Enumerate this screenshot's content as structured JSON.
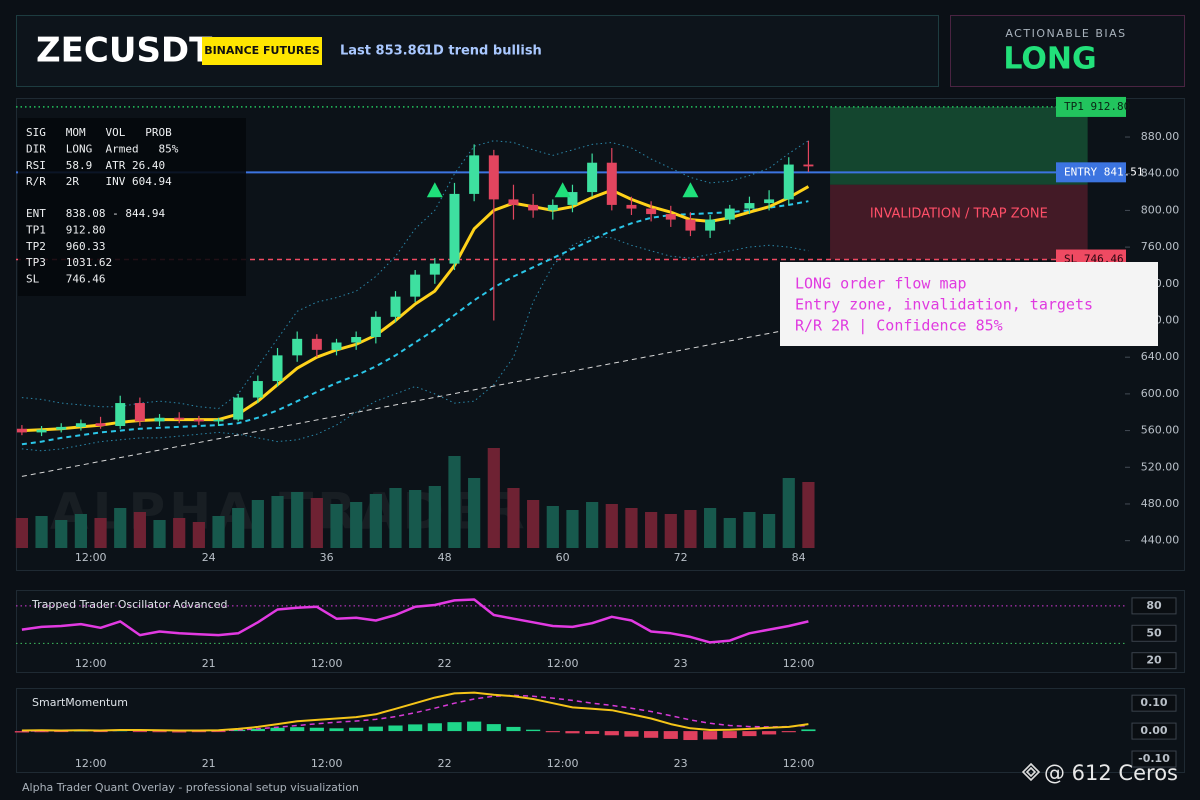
{
  "header": {
    "symbol": "ZECUSDT",
    "exchange": "BINANCE FUTURES",
    "last": "Last 853.86",
    "trend": "1D trend bullish"
  },
  "bias": {
    "label": "ACTIONABLE BIAS",
    "value": "LONG"
  },
  "info_panel": {
    "stats": [
      "SIG   MOM   VOL   PROB",
      "DIR   LONG  Armed   85%",
      "RSI   58.9  ATR 26.40",
      "R/R   2R    INV 604.94"
    ],
    "levels": [
      "ENT   838.08 - 844.94",
      "TP1   912.80",
      "TP2   960.33",
      "TP3   1031.62",
      "SL    746.46"
    ]
  },
  "annotation": {
    "lines": [
      "LONG order flow map",
      "Entry zone, invalidation, targets",
      "R/R 2R | Confidence 85%"
    ]
  },
  "footer": "Alpha Trader Quant Overlay - professional setup visualization",
  "credit": "@ 612 Ceros",
  "chart_data": [
    {
      "type": "candlestick",
      "watermark": "ALPHA TRADER",
      "x": [
        5,
        7,
        9,
        11,
        13,
        15,
        17,
        19,
        21,
        23,
        25,
        27,
        29,
        31,
        33,
        35,
        37,
        39,
        41,
        43,
        45,
        47,
        49,
        51,
        53,
        55,
        57,
        59,
        61,
        63,
        65,
        67,
        69,
        71,
        73,
        75,
        77,
        79,
        81,
        83,
        85
      ],
      "open": [
        562,
        558,
        561,
        564,
        568,
        565,
        590,
        570,
        574,
        572,
        570,
        572,
        596,
        614,
        642,
        660,
        648,
        656,
        662,
        684,
        706,
        730,
        742,
        818,
        860,
        812,
        806,
        800,
        806,
        820,
        852,
        806,
        802,
        796,
        790,
        778,
        790,
        802,
        808,
        812,
        850
      ],
      "high": [
        566,
        565,
        568,
        572,
        575,
        598,
        596,
        578,
        580,
        576,
        574,
        600,
        620,
        650,
        668,
        665,
        660,
        668,
        690,
        712,
        735,
        748,
        830,
        872,
        866,
        828,
        818,
        812,
        828,
        862,
        868,
        815,
        810,
        805,
        798,
        795,
        806,
        815,
        822,
        858,
        876
      ],
      "low": [
        555,
        554,
        558,
        560,
        562,
        562,
        565,
        565,
        568,
        566,
        565,
        570,
        590,
        608,
        635,
        640,
        642,
        648,
        655,
        678,
        700,
        720,
        735,
        810,
        680,
        790,
        792,
        790,
        798,
        815,
        800,
        795,
        788,
        782,
        772,
        770,
        785,
        796,
        800,
        806,
        842
      ],
      "close": [
        558,
        561,
        564,
        568,
        565,
        590,
        570,
        574,
        572,
        570,
        572,
        596,
        614,
        642,
        660,
        648,
        656,
        662,
        684,
        706,
        730,
        742,
        818,
        860,
        812,
        806,
        800,
        806,
        820,
        852,
        806,
        802,
        796,
        790,
        778,
        790,
        802,
        808,
        812,
        850,
        848
      ],
      "volume": [
        30,
        32,
        28,
        34,
        30,
        40,
        36,
        28,
        30,
        26,
        32,
        40,
        48,
        52,
        56,
        50,
        44,
        46,
        54,
        60,
        58,
        62,
        92,
        70,
        100,
        60,
        48,
        42,
        38,
        46,
        44,
        40,
        36,
        34,
        38,
        40,
        30,
        36,
        34,
        70,
        66
      ],
      "volume_ylim": [
        0,
        100
      ],
      "up_color": "#3ee0a0",
      "down_color": "#e2455f",
      "volume_up_color": "#17594d",
      "volume_down_color": "#6e2233",
      "series": [
        {
          "color": "#2a86a8",
          "style": "dotted",
          "width": 1,
          "values": [
            596,
            594,
            590,
            588,
            586,
            586,
            590,
            592,
            590,
            586,
            584,
            600,
            630,
            660,
            690,
            700,
            705,
            712,
            728,
            750,
            780,
            800,
            840,
            870,
            876,
            874,
            866,
            860,
            866,
            872,
            874,
            868,
            856,
            846,
            836,
            830,
            832,
            838,
            846,
            862,
            876
          ]
        },
        {
          "color": "#2a86a8",
          "style": "dotted",
          "width": 1,
          "values": [
            540,
            538,
            540,
            544,
            548,
            550,
            552,
            552,
            554,
            556,
            558,
            556,
            552,
            548,
            550,
            556,
            566,
            580,
            592,
            600,
            608,
            600,
            590,
            592,
            610,
            640,
            700,
            740,
            762,
            772,
            770,
            762,
            756,
            750,
            748,
            752,
            756,
            760,
            762,
            760,
            756
          ]
        },
        {
          "color": "#d8d8d8",
          "style": "dashed",
          "width": 1,
          "x": [
            5,
            82
          ],
          "values": [
            510,
            668
          ]
        },
        {
          "color": "#2bc6e8",
          "style": "dashed",
          "width": 2,
          "values": [
            545,
            548,
            552,
            555,
            558,
            560,
            562,
            563,
            564,
            565,
            566,
            568,
            574,
            582,
            592,
            602,
            612,
            620,
            630,
            642,
            656,
            670,
            686,
            702,
            716,
            728,
            738,
            748,
            758,
            768,
            778,
            786,
            792,
            795,
            796,
            797,
            798,
            800,
            803,
            806,
            810
          ]
        },
        {
          "color": "#ffd21a",
          "style": "solid",
          "width": 3,
          "values": [
            560,
            561,
            562,
            564,
            566,
            569,
            571,
            572,
            572,
            572,
            572,
            578,
            592,
            610,
            628,
            640,
            648,
            654,
            664,
            680,
            698,
            712,
            740,
            780,
            800,
            808,
            804,
            800,
            804,
            814,
            822,
            812,
            804,
            798,
            790,
            788,
            792,
            798,
            804,
            814,
            826
          ]
        }
      ],
      "signals": {
        "x": [
          47,
          60,
          73
        ],
        "values": [
          822,
          822,
          822
        ],
        "color": "#1fe07a"
      },
      "zones": [
        {
          "x": [
            87.2,
            113.4
          ],
          "y": [
            828,
            912.8
          ],
          "color": "#1c7a45"
        },
        {
          "x": [
            87.2,
            113.4
          ],
          "y": [
            746.46,
            828
          ],
          "color": "#7a2234",
          "label": "INVALIDATION / TRAP ZONE",
          "label_color": "#ff4f68"
        }
      ],
      "levels": [
        {
          "value": 912.8,
          "label": "TP1 912.80",
          "color": "#22c55e",
          "style": "dotted",
          "text_color": "#0a2414"
        },
        {
          "value": 841.51,
          "label": "ENTRY 841.51",
          "color": "#3c74e0",
          "style": "solid",
          "text_color": "#ffffff"
        },
        {
          "value": 746.46,
          "label": "SL 746.46",
          "color": "#ef4a62",
          "style": "dashed",
          "text_color": "#2a0610"
        }
      ],
      "xlim": [
        4.4,
        117.2
      ],
      "xticks": [
        {
          "value": 12,
          "label": "12:00"
        },
        24,
        36,
        48,
        60,
        72,
        84
      ],
      "ylim": [
        432,
        916
      ],
      "yticks": [
        {
          "value": 440,
          "label": "440.00"
        },
        {
          "value": 480,
          "label": "480.00"
        },
        {
          "value": 520,
          "label": "520.00"
        },
        {
          "value": 560,
          "label": "560.00"
        },
        {
          "value": 600,
          "label": "600.00"
        },
        {
          "value": 640,
          "label": "640.00"
        },
        {
          "value": 680,
          "label": "680.00"
        },
        {
          "value": 720,
          "label": "720.00"
        },
        {
          "value": 760,
          "label": "760.00"
        },
        {
          "value": 800,
          "label": "800.00"
        },
        {
          "value": 840,
          "label": "840.00"
        },
        {
          "value": 880,
          "label": "880.00"
        }
      ]
    },
    {
      "type": "line",
      "title": "Trapped Trader Oscillator Advanced",
      "x": [
        5,
        7,
        9,
        11,
        13,
        15,
        17,
        19,
        21,
        23,
        25,
        27,
        29,
        31,
        33,
        35,
        37,
        39,
        41,
        43,
        45,
        47,
        49,
        51,
        53,
        55,
        57,
        59,
        61,
        63,
        65,
        67,
        69,
        71,
        73,
        75,
        77,
        79,
        81,
        83,
        85
      ],
      "series": [
        {
          "color": "#e23ae2",
          "style": "solid",
          "width": 2.5,
          "values": [
            54,
            57,
            58,
            60,
            56,
            63,
            48,
            52,
            50,
            49,
            48,
            50,
            62,
            76,
            78,
            79,
            66,
            67,
            64,
            70,
            79,
            81,
            86,
            87,
            70,
            66,
            62,
            58,
            57,
            61,
            68,
            64,
            52,
            50,
            46,
            40,
            42,
            50,
            54,
            58,
            63
          ]
        }
      ],
      "levels": [
        {
          "value": 80,
          "color": "#d63ad6",
          "style": "dotted"
        },
        {
          "value": 39,
          "color": "#3fbf5f",
          "style": "dotted"
        }
      ],
      "xlim": [
        4.4,
        117.2
      ],
      "xticks": [
        {
          "value": 12,
          "label": "12:00"
        },
        {
          "value": 24,
          "label": "21"
        },
        {
          "value": 36,
          "label": "12:00"
        },
        {
          "value": 48,
          "label": "22"
        },
        {
          "value": 60,
          "label": "12:00"
        },
        {
          "value": 72,
          "label": "23"
        },
        {
          "value": 84,
          "label": "12:00"
        }
      ],
      "ylim": [
        12,
        93
      ],
      "yticks": [
        80,
        50,
        20
      ]
    },
    {
      "type": "combo",
      "title": "SmartMomentum",
      "x": [
        5,
        7,
        9,
        11,
        13,
        15,
        17,
        19,
        21,
        23,
        25,
        27,
        29,
        31,
        33,
        35,
        37,
        39,
        41,
        43,
        45,
        47,
        49,
        51,
        53,
        55,
        57,
        59,
        61,
        63,
        65,
        67,
        69,
        71,
        73,
        75,
        77,
        79,
        81,
        83,
        85
      ],
      "histogram": {
        "up_color": "#1fd68a",
        "down_color": "#e0405e",
        "values": [
          -0.005,
          -0.004,
          -0.003,
          0.002,
          -0.002,
          0.003,
          -0.003,
          -0.004,
          -0.005,
          -0.004,
          -0.003,
          0.004,
          0.008,
          0.012,
          0.014,
          0.012,
          0.01,
          0.012,
          0.016,
          0.02,
          0.024,
          0.028,
          0.032,
          0.034,
          0.025,
          0.015,
          0.005,
          -0.004,
          -0.008,
          -0.01,
          -0.015,
          -0.02,
          -0.024,
          -0.028,
          -0.032,
          -0.03,
          -0.025,
          -0.018,
          -0.012,
          -0.004,
          0.006
        ]
      },
      "series": [
        {
          "color": "#d63ad6",
          "style": "dashed",
          "width": 1.5,
          "values": [
            0,
            0.001,
            0.002,
            0.002,
            0.002,
            0.003,
            0.003,
            0.003,
            0.003,
            0.002,
            0.002,
            0.004,
            0.008,
            0.014,
            0.02,
            0.026,
            0.032,
            0.036,
            0.042,
            0.052,
            0.066,
            0.082,
            0.1,
            0.115,
            0.125,
            0.128,
            0.125,
            0.118,
            0.11,
            0.1,
            0.092,
            0.082,
            0.07,
            0.055,
            0.04,
            0.028,
            0.02,
            0.016,
            0.015,
            0.016,
            0.02
          ]
        },
        {
          "color": "#f5c518",
          "style": "solid",
          "width": 2,
          "values": [
            0.002,
            0.003,
            0.002,
            0.003,
            0.002,
            0.004,
            0.004,
            0.003,
            0.002,
            0.002,
            0.003,
            0.008,
            0.015,
            0.025,
            0.035,
            0.04,
            0.045,
            0.05,
            0.06,
            0.08,
            0.1,
            0.12,
            0.135,
            0.138,
            0.13,
            0.125,
            0.115,
            0.1,
            0.085,
            0.08,
            0.075,
            0.06,
            0.045,
            0.025,
            0.01,
            0.004,
            0.005,
            0.008,
            0.012,
            0.015,
            0.025
          ]
        }
      ],
      "xlim": [
        4.4,
        117.2
      ],
      "xticks": [
        {
          "value": 12,
          "label": "12:00"
        },
        {
          "value": 24,
          "label": "21"
        },
        {
          "value": 36,
          "label": "12:00"
        },
        {
          "value": 48,
          "label": "22"
        },
        {
          "value": 60,
          "label": "12:00"
        },
        {
          "value": 72,
          "label": "23"
        },
        {
          "value": 84,
          "label": "12:00"
        }
      ],
      "ylim": [
        -0.125,
        0.14
      ],
      "yticks": [
        {
          "value": 0.1,
          "label": "0.10"
        },
        {
          "value": 0,
          "label": "0.00"
        },
        {
          "value": -0.1,
          "label": "-0.10"
        }
      ]
    }
  ]
}
